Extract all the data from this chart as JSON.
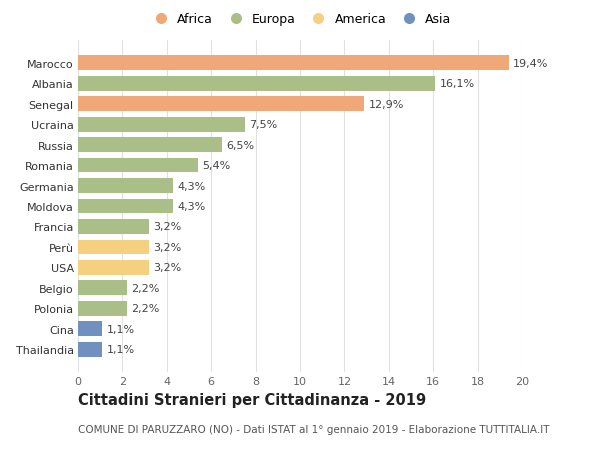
{
  "countries": [
    "Marocco",
    "Albania",
    "Senegal",
    "Ucraina",
    "Russia",
    "Romania",
    "Germania",
    "Moldova",
    "Francia",
    "Perù",
    "USA",
    "Belgio",
    "Polonia",
    "Cina",
    "Thailandia"
  ],
  "values": [
    19.4,
    16.1,
    12.9,
    7.5,
    6.5,
    5.4,
    4.3,
    4.3,
    3.2,
    3.2,
    3.2,
    2.2,
    2.2,
    1.1,
    1.1
  ],
  "labels": [
    "19,4%",
    "16,1%",
    "12,9%",
    "7,5%",
    "6,5%",
    "5,4%",
    "4,3%",
    "4,3%",
    "3,2%",
    "3,2%",
    "3,2%",
    "2,2%",
    "2,2%",
    "1,1%",
    "1,1%"
  ],
  "continents": [
    "Africa",
    "Europa",
    "Africa",
    "Europa",
    "Europa",
    "Europa",
    "Europa",
    "Europa",
    "Europa",
    "America",
    "America",
    "Europa",
    "Europa",
    "Asia",
    "Asia"
  ],
  "continent_colors": {
    "Africa": "#F0A878",
    "Europa": "#AABF88",
    "America": "#F5D080",
    "Asia": "#7090C0"
  },
  "legend_order": [
    "Africa",
    "Europa",
    "America",
    "Asia"
  ],
  "title": "Cittadini Stranieri per Cittadinanza - 2019",
  "subtitle": "COMUNE DI PARUZZARO (NO) - Dati ISTAT al 1° gennaio 2019 - Elaborazione TUTTITALIA.IT",
  "xlim": [
    0,
    20
  ],
  "xticks": [
    0,
    2,
    4,
    6,
    8,
    10,
    12,
    14,
    16,
    18,
    20
  ],
  "background_color": "#ffffff",
  "grid_color": "#e0e0e0",
  "bar_height": 0.72,
  "label_fontsize": 8,
  "tick_fontsize": 8,
  "title_fontsize": 10.5,
  "subtitle_fontsize": 7.5
}
